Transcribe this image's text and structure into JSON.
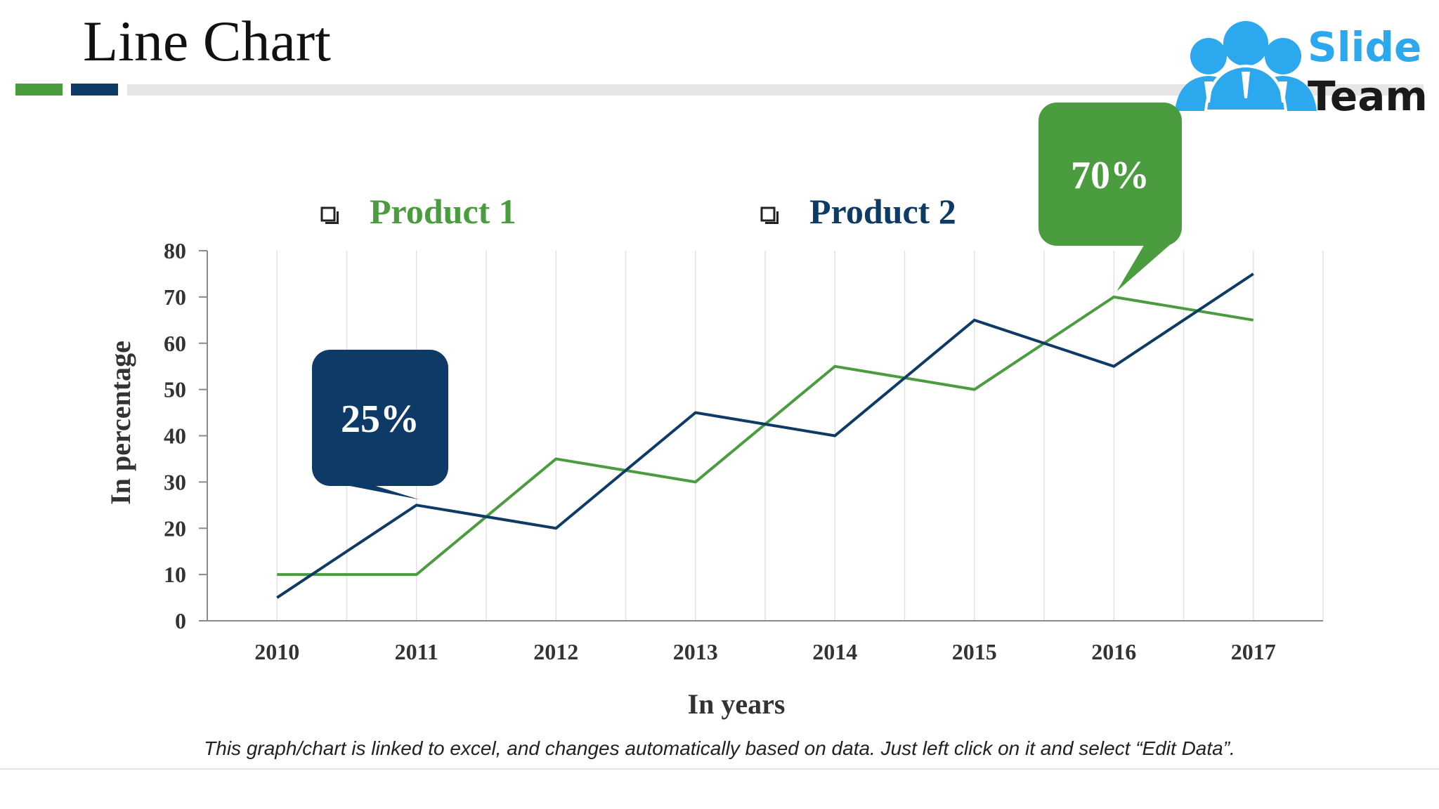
{
  "slide": {
    "title": "Line Chart",
    "footnote": "This graph/chart is linked to excel, and changes automatically based on data. Just left click on it and select “Edit Data”.",
    "logo": {
      "line1": "Slide",
      "line2": "Team",
      "icon": "team-people-icon"
    }
  },
  "colors": {
    "product1": "#4a9c3f",
    "product2": "#0d3a66",
    "grid": "#e3e3e3",
    "axis": "#8a8a8a",
    "text": "#333333"
  },
  "chart_data": {
    "type": "line",
    "title": "",
    "xlabel": "In years",
    "ylabel": "In percentage",
    "categories": [
      "2010",
      "2011",
      "2012",
      "2013",
      "2014",
      "2015",
      "2016",
      "2017"
    ],
    "series": [
      {
        "name": "Product 1",
        "values": [
          10,
          10,
          35,
          30,
          55,
          50,
          70,
          65
        ]
      },
      {
        "name": "Product 2",
        "values": [
          5,
          25,
          20,
          45,
          40,
          65,
          55,
          75
        ]
      }
    ],
    "ylim": [
      0,
      80
    ],
    "yticks": [
      0,
      10,
      20,
      30,
      40,
      50,
      60,
      70,
      80
    ],
    "grid": "vertical",
    "legend": "top",
    "annotations": [
      {
        "text": "70%",
        "series": "Product 1",
        "category": "2016"
      },
      {
        "text": "25%",
        "series": "Product 2",
        "category": "2011"
      }
    ]
  }
}
